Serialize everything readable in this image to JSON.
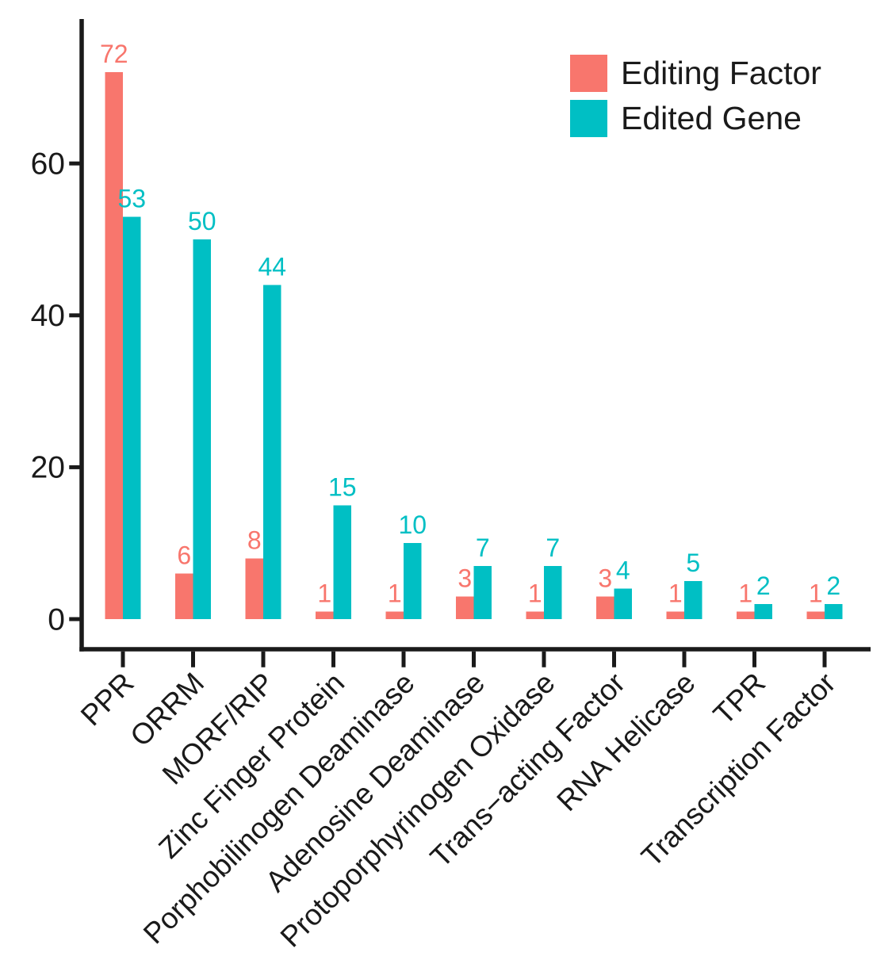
{
  "chart_data": {
    "type": "bar",
    "title": "",
    "xlabel": "",
    "ylabel": "",
    "grid": false,
    "legend_position": "top-right",
    "axis_color": "#1a1a1a",
    "text_color": "#1a1a1a",
    "background_color": "#ffffff",
    "y_ticks": [
      0,
      20,
      40,
      60
    ],
    "ylim": [
      0,
      79
    ],
    "bar_value_labels": true,
    "categories": [
      "PPR",
      "ORRM",
      "MORF/RIP",
      "Zinc Finger Protein",
      "Porphobilinogen Deaminase",
      "Adenosine Deaminase",
      "Protoporphyrinogen Oxidase",
      "Trans−acting Factor",
      "RNA Helicase",
      "TPR",
      "Transcription Factor"
    ],
    "series": [
      {
        "name": "Editing Factor",
        "color": "#F8766D",
        "values": [
          72,
          6,
          8,
          1,
          1,
          3,
          1,
          3,
          1,
          1,
          1
        ]
      },
      {
        "name": "Edited Gene",
        "color": "#00BFC4",
        "values": [
          53,
          50,
          44,
          15,
          10,
          7,
          7,
          4,
          5,
          2,
          2
        ]
      }
    ]
  }
}
